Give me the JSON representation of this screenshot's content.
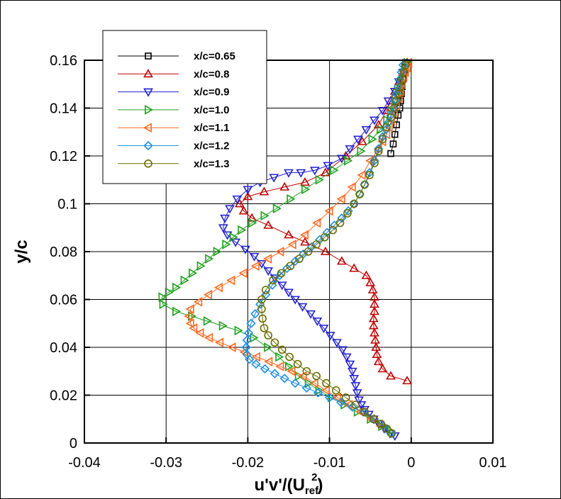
{
  "chart_data": {
    "type": "line",
    "title": "",
    "xlabel": {
      "main": "u'v'/(U",
      "sub": "ref",
      "sup": "2",
      "close": ")"
    },
    "ylabel": "y/c",
    "xlim": [
      -0.04,
      0.01
    ],
    "ylim": [
      0,
      0.16
    ],
    "xticks": [
      -0.04,
      -0.03,
      -0.02,
      -0.01,
      0,
      0.01
    ],
    "xtick_labels": [
      "-0.04",
      "-0.03",
      "-0.02",
      "-0.01",
      "0",
      "0.01"
    ],
    "yticks": [
      0,
      0.02,
      0.04,
      0.06,
      0.08,
      0.1,
      0.12,
      0.14,
      0.16
    ],
    "ytick_labels": [
      "0",
      "0.02",
      "0.04",
      "0.06",
      "0.08",
      "0.1",
      "0.12",
      "0.14",
      "0.16"
    ],
    "grid": true,
    "legend_position": "top-left",
    "series": [
      {
        "name": "x/c=0.65",
        "color": "#000000",
        "marker": "square",
        "x": [
          -0.0007,
          -0.0008,
          -0.0009,
          -0.001,
          -0.0011,
          -0.0012,
          -0.0013,
          -0.0014,
          -0.0016,
          -0.0018,
          -0.002,
          -0.0022,
          -0.0025
        ],
        "y": [
          0.159,
          0.157,
          0.155,
          0.152,
          0.149,
          0.146,
          0.143,
          0.14,
          0.137,
          0.133,
          0.129,
          0.125,
          0.121
        ]
      },
      {
        "name": "x/c=0.8",
        "color": "#c00000",
        "marker": "triangle-up",
        "x": [
          -0.0005,
          -0.001,
          -0.0015,
          -0.002,
          -0.0025,
          -0.003,
          -0.004,
          -0.006,
          -0.008,
          -0.0105,
          -0.013,
          -0.0155,
          -0.018,
          -0.02,
          -0.021,
          -0.0205,
          -0.0195,
          -0.0175,
          -0.015,
          -0.013,
          -0.0105,
          -0.0085,
          -0.007,
          -0.0055,
          -0.005,
          -0.0047,
          -0.0045,
          -0.0045,
          -0.0045,
          -0.0046,
          -0.0046,
          -0.0045,
          -0.0044,
          -0.0043,
          -0.0042,
          -0.004,
          -0.0035,
          -0.0025,
          -0.0005
        ],
        "y": [
          0.159,
          0.155,
          0.151,
          0.147,
          0.143,
          0.139,
          0.133,
          0.126,
          0.12,
          0.113,
          0.109,
          0.107,
          0.105,
          0.103,
          0.1,
          0.097,
          0.094,
          0.091,
          0.087,
          0.084,
          0.08,
          0.076,
          0.073,
          0.07,
          0.067,
          0.064,
          0.061,
          0.058,
          0.055,
          0.052,
          0.049,
          0.046,
          0.043,
          0.04,
          0.037,
          0.034,
          0.031,
          0.028,
          0.026
        ]
      },
      {
        "name": "x/c=0.9",
        "color": "#2020d0",
        "marker": "triangle-down",
        "x": [
          -0.0005,
          -0.001,
          -0.0015,
          -0.002,
          -0.0028,
          -0.0035,
          -0.0045,
          -0.0055,
          -0.0065,
          -0.0075,
          -0.0085,
          -0.0102,
          -0.0118,
          -0.0135,
          -0.015,
          -0.0168,
          -0.0185,
          -0.02,
          -0.0213,
          -0.0222,
          -0.0228,
          -0.023,
          -0.0225,
          -0.0215,
          -0.0203,
          -0.0192,
          -0.0183,
          -0.0175,
          -0.0167,
          -0.0158,
          -0.015,
          -0.0142,
          -0.0133,
          -0.0123,
          -0.0115,
          -0.0107,
          -0.0099,
          -0.0091,
          -0.0084,
          -0.0079,
          -0.0075,
          -0.0072,
          -0.007,
          -0.0068,
          -0.0066,
          -0.0064,
          -0.0061,
          -0.0057,
          -0.0052,
          -0.0046,
          -0.004,
          -0.0033,
          -0.0026,
          -0.002
        ],
        "y": [
          0.159,
          0.155,
          0.151,
          0.147,
          0.143,
          0.139,
          0.135,
          0.131,
          0.127,
          0.123,
          0.119,
          0.116,
          0.114,
          0.113,
          0.113,
          0.111,
          0.109,
          0.106,
          0.102,
          0.098,
          0.094,
          0.09,
          0.087,
          0.084,
          0.081,
          0.078,
          0.075,
          0.072,
          0.069,
          0.066,
          0.063,
          0.06,
          0.057,
          0.054,
          0.051,
          0.048,
          0.045,
          0.042,
          0.039,
          0.036,
          0.033,
          0.03,
          0.027,
          0.024,
          0.021,
          0.018,
          0.016,
          0.014,
          0.012,
          0.01,
          0.008,
          0.006,
          0.004,
          0.003
        ]
      },
      {
        "name": "x/c=1.0",
        "color": "#20a020",
        "marker": "triangle-right",
        "x": [
          -0.0005,
          -0.0008,
          -0.0012,
          -0.0016,
          -0.002,
          -0.0025,
          -0.003,
          -0.0038,
          -0.0048,
          -0.0062,
          -0.0078,
          -0.0095,
          -0.0113,
          -0.013,
          -0.0148,
          -0.0165,
          -0.018,
          -0.0195,
          -0.0208,
          -0.0218,
          -0.0227,
          -0.0238,
          -0.0248,
          -0.0258,
          -0.0268,
          -0.0278,
          -0.0288,
          -0.0297,
          -0.0305,
          -0.0304,
          -0.0288,
          -0.0269,
          -0.025,
          -0.0231,
          -0.0212,
          -0.0193,
          -0.0176,
          -0.0162,
          -0.015,
          -0.0138,
          -0.0126,
          -0.0113,
          -0.0098,
          -0.0082,
          -0.0066,
          -0.005,
          -0.0036,
          -0.0025
        ],
        "y": [
          0.159,
          0.155,
          0.151,
          0.147,
          0.143,
          0.139,
          0.135,
          0.131,
          0.127,
          0.122,
          0.118,
          0.114,
          0.11,
          0.106,
          0.102,
          0.098,
          0.095,
          0.092,
          0.089,
          0.086,
          0.083,
          0.08,
          0.077,
          0.074,
          0.071,
          0.068,
          0.065,
          0.063,
          0.061,
          0.058,
          0.055,
          0.053,
          0.051,
          0.049,
          0.047,
          0.044,
          0.04,
          0.036,
          0.032,
          0.028,
          0.025,
          0.022,
          0.019,
          0.016,
          0.013,
          0.01,
          0.007,
          0.005
        ]
      },
      {
        "name": "x/c=1.1",
        "color": "#ff6a20",
        "marker": "triangle-left",
        "x": [
          -0.0003,
          -0.0005,
          -0.0007,
          -0.0009,
          -0.0011,
          -0.0013,
          -0.0015,
          -0.0018,
          -0.0021,
          -0.0024,
          -0.0027,
          -0.003,
          -0.0035,
          -0.004,
          -0.005,
          -0.006,
          -0.0072,
          -0.0085,
          -0.01,
          -0.0115,
          -0.013,
          -0.0145,
          -0.016,
          -0.0175,
          -0.019,
          -0.0205,
          -0.022,
          -0.0235,
          -0.0248,
          -0.026,
          -0.027,
          -0.0272,
          -0.027,
          -0.0266,
          -0.0258,
          -0.0247,
          -0.0234,
          -0.0219,
          -0.0204,
          -0.0189,
          -0.0174,
          -0.016,
          -0.0146,
          -0.0132,
          -0.0118,
          -0.0104,
          -0.009,
          -0.0076,
          -0.0062,
          -0.0049,
          -0.0037
        ],
        "y": [
          0.159,
          0.157,
          0.155,
          0.153,
          0.15,
          0.147,
          0.144,
          0.141,
          0.138,
          0.135,
          0.132,
          0.129,
          0.126,
          0.123,
          0.118,
          0.112,
          0.107,
          0.102,
          0.097,
          0.092,
          0.087,
          0.083,
          0.08,
          0.077,
          0.074,
          0.071,
          0.068,
          0.065,
          0.062,
          0.059,
          0.056,
          0.053,
          0.05,
          0.048,
          0.046,
          0.044,
          0.042,
          0.04,
          0.038,
          0.036,
          0.034,
          0.032,
          0.03,
          0.028,
          0.025,
          0.022,
          0.019,
          0.016,
          0.013,
          0.01,
          0.007
        ]
      },
      {
        "name": "x/c=1.2",
        "color": "#2090e0",
        "marker": "diamond",
        "x": [
          -0.001,
          -0.0012,
          -0.0014,
          -0.0016,
          -0.0018,
          -0.002,
          -0.0022,
          -0.0025,
          -0.0028,
          -0.0031,
          -0.0035,
          -0.004,
          -0.0045,
          -0.0051,
          -0.0057,
          -0.0063,
          -0.007,
          -0.0077,
          -0.0085,
          -0.0094,
          -0.0103,
          -0.0112,
          -0.0122,
          -0.0132,
          -0.0142,
          -0.0152,
          -0.0161,
          -0.017,
          -0.0178,
          -0.0185,
          -0.0191,
          -0.0196,
          -0.0199,
          -0.0201,
          -0.0202,
          -0.0201,
          -0.0198,
          -0.019,
          -0.0179,
          -0.0167,
          -0.0155,
          -0.0142,
          -0.0128,
          -0.0114,
          -0.01,
          -0.0086,
          -0.0072,
          -0.0058,
          -0.0045,
          -0.0034,
          -0.0025
        ],
        "y": [
          0.158,
          0.155,
          0.152,
          0.149,
          0.146,
          0.143,
          0.14,
          0.137,
          0.134,
          0.131,
          0.128,
          0.123,
          0.118,
          0.113,
          0.108,
          0.104,
          0.1,
          0.097,
          0.094,
          0.091,
          0.088,
          0.085,
          0.082,
          0.079,
          0.076,
          0.073,
          0.07,
          0.066,
          0.062,
          0.058,
          0.054,
          0.05,
          0.046,
          0.043,
          0.04,
          0.037,
          0.035,
          0.033,
          0.031,
          0.029,
          0.027,
          0.025,
          0.023,
          0.021,
          0.019,
          0.017,
          0.015,
          0.013,
          0.01,
          0.007,
          0.004
        ]
      },
      {
        "name": "x/c=1.3",
        "color": "#6b6b00",
        "marker": "circle",
        "x": [
          -0.0007,
          -0.0009,
          -0.0011,
          -0.0013,
          -0.0015,
          -0.0018,
          -0.0021,
          -0.0025,
          -0.003,
          -0.0035,
          -0.004,
          -0.0045,
          -0.0051,
          -0.0057,
          -0.0063,
          -0.007,
          -0.0078,
          -0.0087,
          -0.0096,
          -0.0106,
          -0.0116,
          -0.0126,
          -0.0137,
          -0.0148,
          -0.0159,
          -0.0169,
          -0.0178,
          -0.0183,
          -0.0183,
          -0.0182,
          -0.018,
          -0.0175,
          -0.0167,
          -0.0158,
          -0.0149,
          -0.0139,
          -0.0128,
          -0.0116,
          -0.0104,
          -0.0092,
          -0.008,
          -0.0068,
          -0.0057,
          -0.0046,
          -0.0037,
          -0.003,
          -0.0024
        ],
        "y": [
          0.158,
          0.155,
          0.152,
          0.149,
          0.146,
          0.143,
          0.14,
          0.136,
          0.132,
          0.127,
          0.122,
          0.117,
          0.112,
          0.108,
          0.104,
          0.1,
          0.096,
          0.092,
          0.089,
          0.086,
          0.083,
          0.08,
          0.077,
          0.074,
          0.071,
          0.068,
          0.064,
          0.06,
          0.056,
          0.052,
          0.048,
          0.045,
          0.042,
          0.039,
          0.036,
          0.033,
          0.03,
          0.028,
          0.025,
          0.022,
          0.019,
          0.016,
          0.013,
          0.01,
          0.008,
          0.006,
          0.004
        ]
      }
    ]
  }
}
